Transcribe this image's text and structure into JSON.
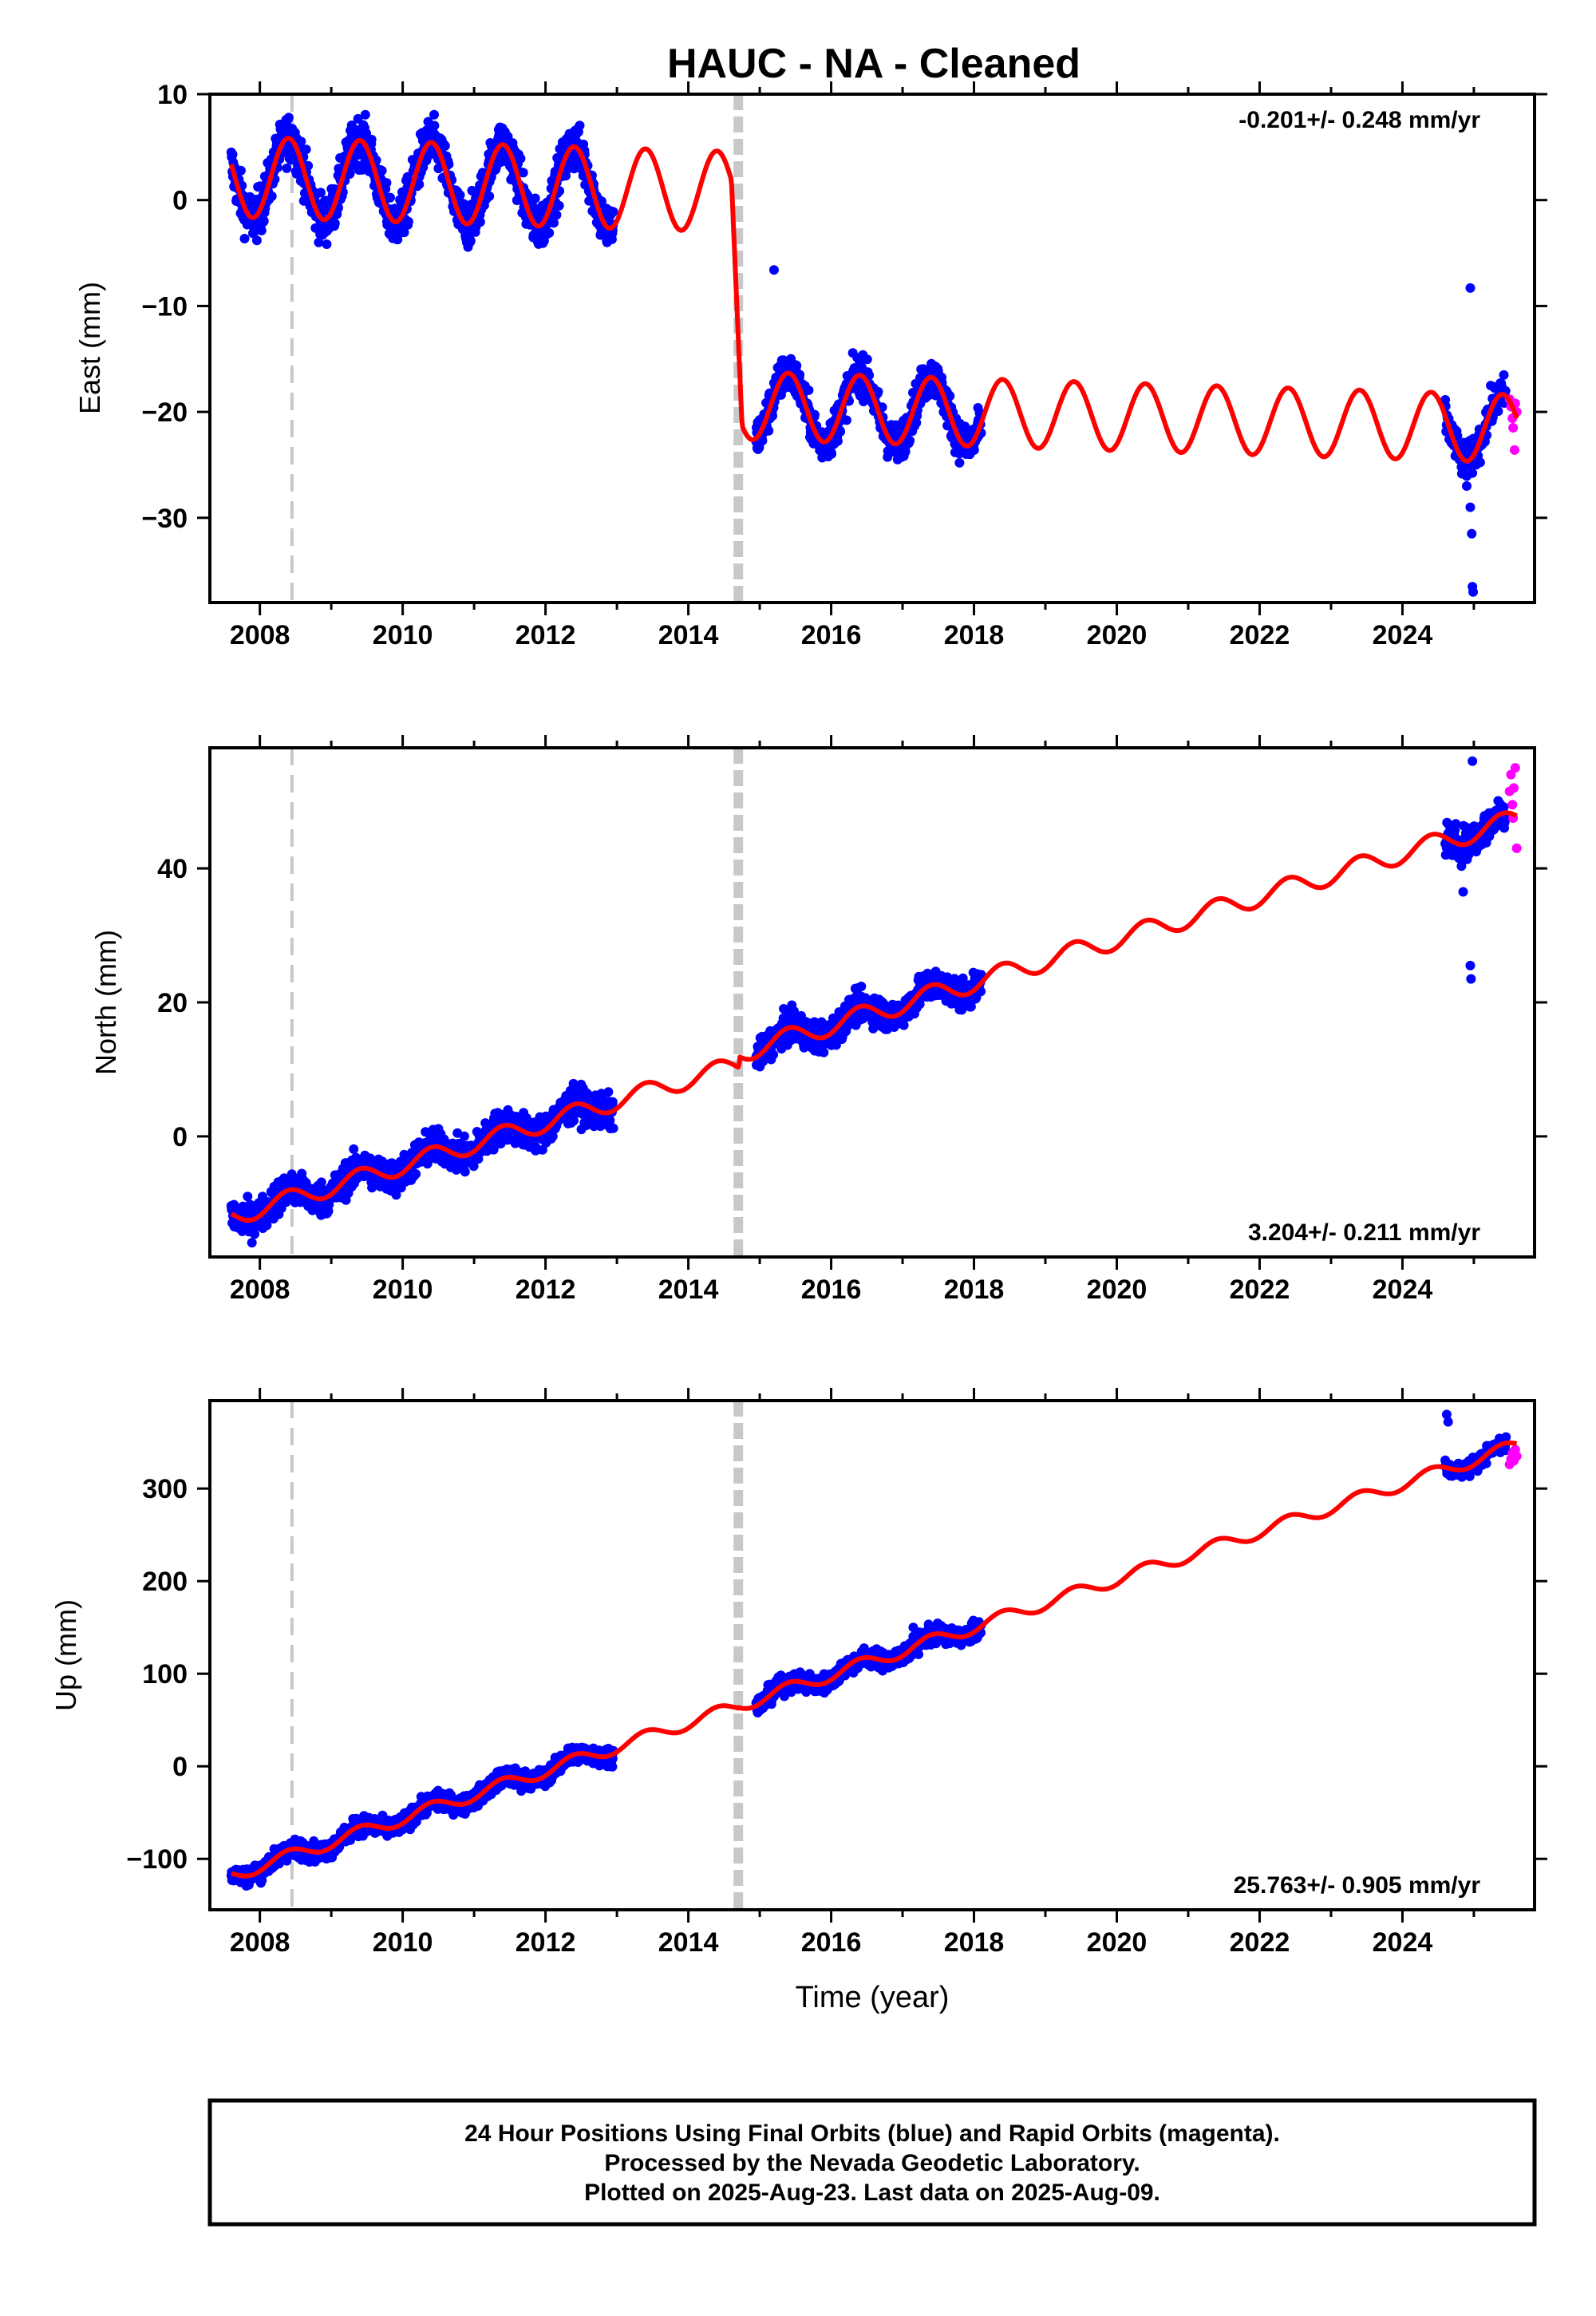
{
  "title": "HAUC  - NA - Cleaned",
  "xlabel": "Time (year)",
  "colors": {
    "final_orbits": "#0000ff",
    "rapid_orbits": "#ff00ff",
    "model": "#ff0000",
    "offset_lines": "#c8c8c8"
  },
  "footer": {
    "line1": "24 Hour Positions Using Final Orbits (blue) and Rapid Orbits (magenta).",
    "line2": "Processed by the Nevada Geodetic Laboratory.",
    "line3": "Plotted on 2025-Aug-23. Last data on 2025-Aug-09."
  },
  "chart_data": [
    {
      "type": "scatter",
      "ylabel": "East (mm)",
      "rate_label": "-0.201+/- 0.248 mm/yr",
      "rate_position": "top-right",
      "xlim": [
        2007.3,
        2025.85
      ],
      "ylim": [
        -38,
        10
      ],
      "xticks": [
        "2008",
        "2010",
        "2012",
        "2014",
        "2016",
        "2018",
        "2020",
        "2022",
        "2024"
      ],
      "yticks": [
        "10",
        "0",
        "−10",
        "−20",
        "−30"
      ],
      "offset_lines": [
        {
          "x": 2008.45,
          "style": "dashed"
        },
        {
          "x": 2014.7,
          "style": "thick-dashed"
        }
      ],
      "model": {
        "seg1": {
          "from": 2007.6,
          "to": 2014.6,
          "y0": 2.2,
          "trend": -0.2,
          "amp": 3.8,
          "phase_year": 2008.4
        },
        "jump": {
          "from": 2014.6,
          "to": 2014.75,
          "y_start": 2.5,
          "y_end": -21.0
        },
        "seg2": {
          "from": 2014.75,
          "to": 2025.6,
          "y0": -19.4,
          "trend": -0.201,
          "amp": 3.2,
          "phase_year": 2015.4,
          "ramp": 0.6
        }
      },
      "final_series": [
        {
          "from": 2007.6,
          "to": 2012.95,
          "noise": 1.6,
          "n": 1150
        },
        {
          "from": 2014.95,
          "to": 2018.1,
          "noise": 1.3,
          "n": 720
        },
        {
          "from": 2024.6,
          "to": 2025.45,
          "noise": 1.2,
          "n": 140
        }
      ],
      "outliers": [
        [
          2015.2,
          -6.6
        ],
        [
          2024.95,
          -8.3
        ],
        [
          2024.95,
          -29.0
        ],
        [
          2024.97,
          -31.5
        ],
        [
          2024.98,
          -36.5
        ],
        [
          2024.99,
          -37.0
        ],
        [
          2024.9,
          -27.0
        ]
      ],
      "rapid_points": [
        [
          2025.5,
          -18.8
        ],
        [
          2025.52,
          -19.5
        ],
        [
          2025.54,
          -20.6
        ],
        [
          2025.55,
          -21.5
        ],
        [
          2025.57,
          -23.6
        ],
        [
          2025.58,
          -19.2
        ],
        [
          2025.6,
          -20.0
        ]
      ]
    },
    {
      "type": "scatter",
      "ylabel": "North (mm)",
      "rate_label": "3.204+/- 0.211 mm/yr",
      "rate_position": "bottom-right",
      "xlim": [
        2007.3,
        2025.85
      ],
      "ylim": [
        -18,
        58
      ],
      "xticks": [
        "2008",
        "2010",
        "2012",
        "2014",
        "2016",
        "2018",
        "2020",
        "2022",
        "2024"
      ],
      "yticks": [
        "40",
        "20",
        "0"
      ],
      "offset_lines": [
        {
          "x": 2008.45,
          "style": "dashed"
        },
        {
          "x": 2014.7,
          "style": "thick-dashed"
        }
      ],
      "model": {
        "seg1": {
          "from": 2007.6,
          "to": 2014.7,
          "y0": -12.0,
          "trend": 3.204,
          "amp": 1.4,
          "phase_year": 2008.4
        },
        "jump": {
          "from": 2014.7,
          "to": 2014.72,
          "y_start": 10.5,
          "y_end": 11.0
        },
        "seg2": {
          "from": 2014.72,
          "to": 2025.6,
          "y0": 12.5,
          "trend": 3.204,
          "amp": 1.5,
          "phase_year": 2015.4,
          "ramp": 0
        }
      },
      "final_series": [
        {
          "from": 2007.6,
          "to": 2012.95,
          "noise": 1.8,
          "n": 1150
        },
        {
          "from": 2014.95,
          "to": 2018.1,
          "noise": 1.6,
          "n": 720
        },
        {
          "from": 2024.6,
          "to": 2025.45,
          "noise": 1.8,
          "n": 140
        }
      ],
      "outliers": [
        [
          2024.85,
          36.5
        ],
        [
          2024.95,
          25.5
        ],
        [
          2024.96,
          23.5
        ],
        [
          2024.98,
          56.0
        ]
      ],
      "rapid_points": [
        [
          2025.5,
          51.5
        ],
        [
          2025.52,
          54.0
        ],
        [
          2025.54,
          49.5
        ],
        [
          2025.56,
          52.0
        ],
        [
          2025.58,
          55.0
        ],
        [
          2025.6,
          43.0
        ],
        [
          2025.55,
          47.5
        ]
      ]
    },
    {
      "type": "scatter",
      "ylabel": "Up (mm)",
      "rate_label": "25.763+/- 0.905 mm/yr",
      "rate_position": "bottom-right",
      "xlim": [
        2007.3,
        2025.85
      ],
      "ylim": [
        -155,
        395
      ],
      "xticks": [
        "2008",
        "2010",
        "2012",
        "2014",
        "2016",
        "2018",
        "2020",
        "2022",
        "2024"
      ],
      "yticks": [
        "300",
        "200",
        "100",
        "0",
        "−100"
      ],
      "offset_lines": [
        {
          "x": 2008.45,
          "style": "dashed"
        },
        {
          "x": 2014.7,
          "style": "thick-dashed"
        }
      ],
      "model": {
        "seg1": {
          "from": 2007.6,
          "to": 2014.7,
          "y0": -118.0,
          "trend": 25.763,
          "amp": 7.0,
          "phase_year": 2008.4
        },
        "jump": {
          "from": 2014.7,
          "to": 2014.72,
          "y_start": 65.0,
          "y_end": 62.0
        },
        "seg2": {
          "from": 2014.72,
          "to": 2025.6,
          "y0": 66.0,
          "trend": 25.763,
          "amp": 7.0,
          "phase_year": 2015.4,
          "ramp": 0
        }
      },
      "final_series": [
        {
          "from": 2007.6,
          "to": 2012.95,
          "noise": 7.0,
          "n": 1150
        },
        {
          "from": 2014.95,
          "to": 2018.1,
          "noise": 7.0,
          "n": 720
        },
        {
          "from": 2024.6,
          "to": 2025.45,
          "noise": 6.0,
          "n": 140
        }
      ],
      "outliers": [
        [
          2024.62,
          380.0
        ],
        [
          2024.64,
          372.0
        ],
        [
          2017.15,
          150.0
        ],
        [
          2015.7,
          100.0
        ]
      ],
      "rapid_points": [
        [
          2025.5,
          326.0
        ],
        [
          2025.52,
          332.0
        ],
        [
          2025.54,
          338.0
        ],
        [
          2025.56,
          330.0
        ],
        [
          2025.58,
          342.0
        ],
        [
          2025.6,
          335.0
        ]
      ]
    }
  ]
}
